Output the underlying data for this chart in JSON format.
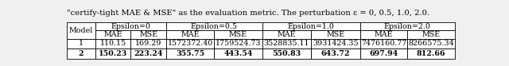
{
  "title_text": "\"certify-tight MAE & MSE\" as the evaluation metric. The perturbation ε = 0, 0.5, 1.0, 2.0.",
  "col_groups": [
    "Epsilon=0",
    "Epsilon=0.5",
    "Epsilon=1.0",
    "Epsilon=2.0"
  ],
  "sub_cols": [
    "MAE",
    "MSE"
  ],
  "row_label": "Model",
  "rows": [
    {
      "model": "1",
      "bold": false,
      "values": [
        "110.15",
        "169.29",
        "1572372.40",
        "1759524.73",
        "3528835.11",
        "3931424.35",
        "7476160.77",
        "8266575.34"
      ]
    },
    {
      "model": "2",
      "bold": true,
      "values": [
        "150.23",
        "223.24",
        "355.75",
        "443.54",
        "550.83",
        "643.72",
        "697.94",
        "812.66"
      ]
    }
  ],
  "bg_color": "#f0f0f0",
  "table_bg": "#ffffff",
  "line_color": "#000000",
  "text_color": "#000000",
  "title_fontsize": 7.2,
  "table_fontsize": 6.8
}
